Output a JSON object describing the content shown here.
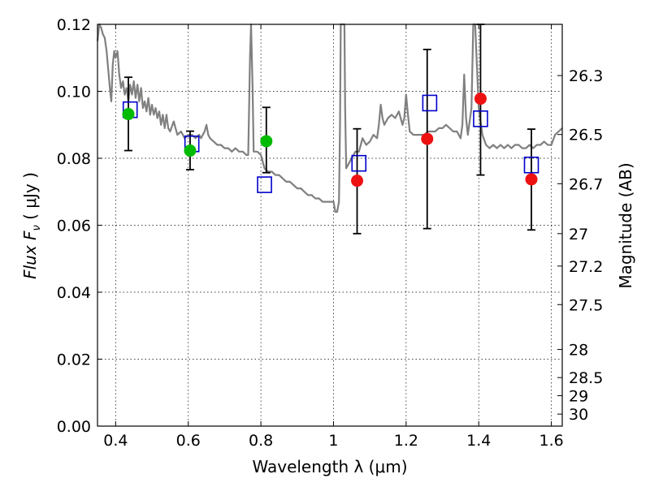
{
  "chart_data": {
    "type": "scatter",
    "xlabel": "Wavelength  λ (μm)",
    "ylabel": "Flux  F",
    "ylabel_sub": "ν",
    "ylabel_unit": " ( μJy )",
    "y2label": "Magnitude (AB)",
    "xlim": [
      0.35,
      1.63
    ],
    "ylim": [
      0.0,
      0.12
    ],
    "grid": true,
    "x_ticks": [
      {
        "value": 0.4,
        "label": "0.4"
      },
      {
        "value": 0.6,
        "label": "0.6"
      },
      {
        "value": 0.8,
        "label": "0.8"
      },
      {
        "value": 1.0,
        "label": "1"
      },
      {
        "value": 1.2,
        "label": "1.2"
      },
      {
        "value": 1.4,
        "label": "1.4"
      },
      {
        "value": 1.6,
        "label": "1.6"
      }
    ],
    "y_ticks": [
      {
        "value": 0.0,
        "label": "0.00"
      },
      {
        "value": 0.02,
        "label": "0.02"
      },
      {
        "value": 0.04,
        "label": "0.04"
      },
      {
        "value": 0.06,
        "label": "0.06"
      },
      {
        "value": 0.08,
        "label": "0.08"
      },
      {
        "value": 0.1,
        "label": "0.10"
      },
      {
        "value": 0.12,
        "label": "0.12"
      }
    ],
    "y2_ticks": [
      {
        "flux": 0.1047,
        "label": "26.3"
      },
      {
        "flux": 0.0871,
        "label": "26.5"
      },
      {
        "flux": 0.0724,
        "label": "26.7"
      },
      {
        "flux": 0.0575,
        "label": "27"
      },
      {
        "flux": 0.0478,
        "label": "27.2"
      },
      {
        "flux": 0.0363,
        "label": "27.5"
      },
      {
        "flux": 0.0229,
        "label": "28"
      },
      {
        "flux": 0.0145,
        "label": "28.5"
      },
      {
        "flux": 0.0091,
        "label": "29"
      },
      {
        "flux": 0.0036,
        "label": "30"
      }
    ],
    "series": [
      {
        "style": "spectrum-line",
        "color": "#808080",
        "points": [
          [
            0.35,
            0.115
          ],
          [
            0.355,
            0.12
          ],
          [
            0.36,
            0.119
          ],
          [
            0.365,
            0.117
          ],
          [
            0.37,
            0.116
          ],
          [
            0.375,
            0.112
          ],
          [
            0.38,
            0.106
          ],
          [
            0.385,
            0.1
          ],
          [
            0.388,
            0.097
          ],
          [
            0.392,
            0.108
          ],
          [
            0.396,
            0.112
          ],
          [
            0.4,
            0.11
          ],
          [
            0.405,
            0.112
          ],
          [
            0.41,
            0.105
          ],
          [
            0.415,
            0.101
          ],
          [
            0.42,
            0.103
          ],
          [
            0.425,
            0.099
          ],
          [
            0.43,
            0.101
          ],
          [
            0.435,
            0.097
          ],
          [
            0.44,
            0.102
          ],
          [
            0.445,
            0.099
          ],
          [
            0.45,
            0.103
          ],
          [
            0.455,
            0.098
          ],
          [
            0.46,
            0.102
          ],
          [
            0.465,
            0.097
          ],
          [
            0.47,
            0.101
          ],
          [
            0.475,
            0.095
          ],
          [
            0.48,
            0.097
          ],
          [
            0.485,
            0.094
          ],
          [
            0.49,
            0.098
          ],
          [
            0.495,
            0.093
          ],
          [
            0.5,
            0.096
          ],
          [
            0.505,
            0.093
          ],
          [
            0.51,
            0.095
          ],
          [
            0.515,
            0.092
          ],
          [
            0.52,
            0.094
          ],
          [
            0.525,
            0.09
          ],
          [
            0.53,
            0.093
          ],
          [
            0.535,
            0.089
          ],
          [
            0.54,
            0.093
          ],
          [
            0.545,
            0.089
          ],
          [
            0.55,
            0.088
          ],
          [
            0.56,
            0.091
          ],
          [
            0.57,
            0.087
          ],
          [
            0.58,
            0.088
          ],
          [
            0.59,
            0.086
          ],
          [
            0.6,
            0.087
          ],
          [
            0.61,
            0.087
          ],
          [
            0.62,
            0.086
          ],
          [
            0.63,
            0.087
          ],
          [
            0.635,
            0.086
          ],
          [
            0.64,
            0.087
          ],
          [
            0.645,
            0.088
          ],
          [
            0.65,
            0.09
          ],
          [
            0.655,
            0.087
          ],
          [
            0.66,
            0.086
          ],
          [
            0.67,
            0.085
          ],
          [
            0.68,
            0.084
          ],
          [
            0.69,
            0.084
          ],
          [
            0.7,
            0.083
          ],
          [
            0.71,
            0.083
          ],
          [
            0.72,
            0.082
          ],
          [
            0.73,
            0.083
          ],
          [
            0.74,
            0.082
          ],
          [
            0.75,
            0.082
          ],
          [
            0.76,
            0.081
          ],
          [
            0.765,
            0.081
          ],
          [
            0.77,
            0.11
          ],
          [
            0.773,
            0.12
          ],
          [
            0.777,
            0.102
          ],
          [
            0.78,
            0.082
          ],
          [
            0.785,
            0.082
          ],
          [
            0.79,
            0.082
          ],
          [
            0.8,
            0.081
          ],
          [
            0.81,
            0.077
          ],
          [
            0.82,
            0.076
          ],
          [
            0.83,
            0.076
          ],
          [
            0.84,
            0.075
          ],
          [
            0.85,
            0.075
          ],
          [
            0.86,
            0.074
          ],
          [
            0.87,
            0.073
          ],
          [
            0.88,
            0.073
          ],
          [
            0.89,
            0.072
          ],
          [
            0.9,
            0.071
          ],
          [
            0.91,
            0.071
          ],
          [
            0.92,
            0.07
          ],
          [
            0.93,
            0.069
          ],
          [
            0.94,
            0.069
          ],
          [
            0.95,
            0.068
          ],
          [
            0.96,
            0.068
          ],
          [
            0.97,
            0.067
          ],
          [
            0.98,
            0.067
          ],
          [
            0.99,
            0.067
          ],
          [
            1.0,
            0.067
          ],
          [
            1.005,
            0.064
          ],
          [
            1.01,
            0.064
          ],
          [
            1.015,
            0.067
          ],
          [
            1.018,
            0.09
          ],
          [
            1.02,
            0.12
          ],
          [
            1.03,
            0.12
          ],
          [
            1.032,
            0.095
          ],
          [
            1.035,
            0.077
          ],
          [
            1.04,
            0.078
          ],
          [
            1.05,
            0.08
          ],
          [
            1.06,
            0.082
          ],
          [
            1.07,
            0.082
          ],
          [
            1.08,
            0.086
          ],
          [
            1.09,
            0.084
          ],
          [
            1.1,
            0.085
          ],
          [
            1.11,
            0.087
          ],
          [
            1.12,
            0.086
          ],
          [
            1.125,
            0.09
          ],
          [
            1.13,
            0.096
          ],
          [
            1.135,
            0.092
          ],
          [
            1.14,
            0.09
          ],
          [
            1.15,
            0.092
          ],
          [
            1.16,
            0.093
          ],
          [
            1.17,
            0.092
          ],
          [
            1.18,
            0.094
          ],
          [
            1.19,
            0.09
          ],
          [
            1.195,
            0.092
          ],
          [
            1.2,
            0.099
          ],
          [
            1.205,
            0.093
          ],
          [
            1.21,
            0.088
          ],
          [
            1.22,
            0.087
          ],
          [
            1.23,
            0.087
          ],
          [
            1.24,
            0.087
          ],
          [
            1.25,
            0.087
          ],
          [
            1.26,
            0.088
          ],
          [
            1.27,
            0.088
          ],
          [
            1.28,
            0.088
          ],
          [
            1.29,
            0.089
          ],
          [
            1.3,
            0.089
          ],
          [
            1.31,
            0.09
          ],
          [
            1.32,
            0.089
          ],
          [
            1.33,
            0.088
          ],
          [
            1.34,
            0.088
          ],
          [
            1.35,
            0.086
          ],
          [
            1.355,
            0.09
          ],
          [
            1.36,
            0.105
          ],
          [
            1.365,
            0.092
          ],
          [
            1.37,
            0.087
          ],
          [
            1.38,
            0.095
          ],
          [
            1.385,
            0.12
          ],
          [
            1.39,
            0.12
          ],
          [
            1.4,
            0.095
          ],
          [
            1.41,
            0.087
          ],
          [
            1.42,
            0.084
          ],
          [
            1.43,
            0.083
          ],
          [
            1.44,
            0.084
          ],
          [
            1.45,
            0.083
          ],
          [
            1.46,
            0.084
          ],
          [
            1.47,
            0.083
          ],
          [
            1.48,
            0.084
          ],
          [
            1.49,
            0.083
          ],
          [
            1.5,
            0.084
          ],
          [
            1.51,
            0.084
          ],
          [
            1.52,
            0.083
          ],
          [
            1.53,
            0.083
          ],
          [
            1.54,
            0.084
          ],
          [
            1.55,
            0.083
          ],
          [
            1.56,
            0.084
          ],
          [
            1.57,
            0.084
          ],
          [
            1.58,
            0.085
          ],
          [
            1.59,
            0.084
          ],
          [
            1.6,
            0.084
          ],
          [
            1.61,
            0.087
          ],
          [
            1.62,
            0.088
          ],
          [
            1.63,
            0.089
          ]
        ]
      },
      {
        "style": "errorbars",
        "color": "#000000",
        "points": [
          {
            "x": 0.435,
            "lo": 0.0823,
            "hi": 0.1042
          },
          {
            "x": 0.605,
            "lo": 0.0766,
            "hi": 0.0881
          },
          {
            "x": 0.815,
            "lo": 0.0757,
            "hi": 0.0952
          },
          {
            "x": 1.065,
            "lo": 0.0575,
            "hi": 0.0888
          },
          {
            "x": 1.258,
            "lo": 0.059,
            "hi": 0.1125
          },
          {
            "x": 1.405,
            "lo": 0.075,
            "hi": 0.12
          },
          {
            "x": 1.545,
            "lo": 0.0586,
            "hi": 0.0887
          }
        ]
      },
      {
        "style": "open-squares",
        "color": "#0000cc",
        "points": [
          [
            0.44,
            0.0945
          ],
          [
            0.61,
            0.0843
          ],
          [
            0.81,
            0.0721
          ],
          [
            1.07,
            0.0785
          ],
          [
            1.265,
            0.0965
          ],
          [
            1.405,
            0.0918
          ],
          [
            1.545,
            0.078
          ]
        ]
      },
      {
        "style": "filled-circles",
        "color": "#00bb00",
        "points": [
          [
            0.435,
            0.0932
          ],
          [
            0.605,
            0.0823
          ],
          [
            0.815,
            0.0851
          ]
        ]
      },
      {
        "style": "filled-circles",
        "color": "#ee1111",
        "points": [
          [
            1.065,
            0.0733
          ],
          [
            1.258,
            0.0858
          ],
          [
            1.405,
            0.0978
          ],
          [
            1.545,
            0.0737
          ]
        ]
      }
    ]
  }
}
